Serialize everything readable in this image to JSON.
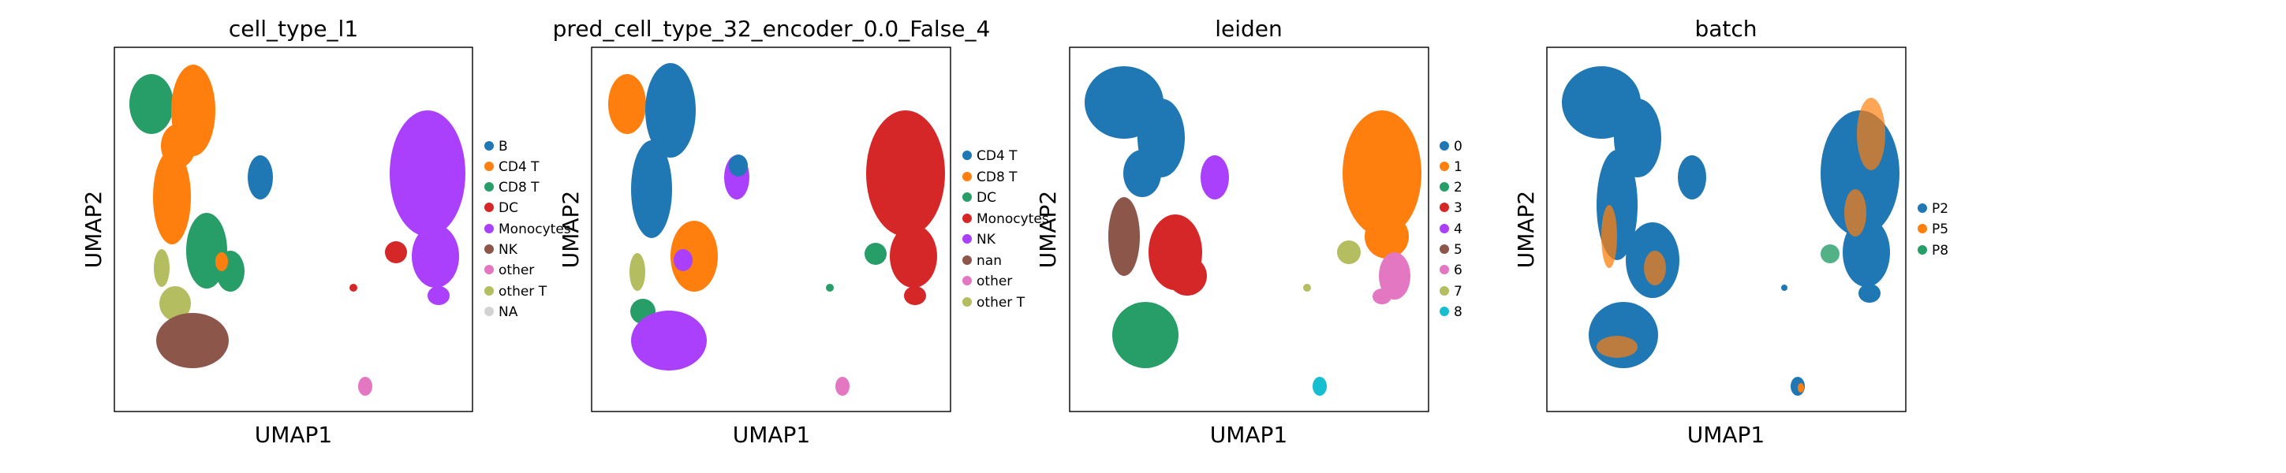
{
  "figure": {
    "panels": [
      {
        "title": "cell_type_l1",
        "xlabel": "UMAP1",
        "ylabel": "UMAP2",
        "legend": [
          "B",
          "CD4 T",
          "CD8 T",
          "DC",
          "Monocytes",
          "NK",
          "other",
          "other T",
          "NA"
        ]
      },
      {
        "title": "pred_cell_type_32_encoder_0.0_False_4",
        "xlabel": "UMAP1",
        "ylabel": "UMAP2",
        "legend": [
          "CD4 T",
          "CD8 T",
          "DC",
          "Monocytes",
          "NK",
          "nan",
          "other",
          "other T"
        ]
      },
      {
        "title": "leiden",
        "xlabel": "UMAP1",
        "ylabel": "UMAP2",
        "legend": [
          "0",
          "1",
          "2",
          "3",
          "4",
          "5",
          "6",
          "7",
          "8"
        ]
      },
      {
        "title": "batch",
        "xlabel": "UMAP1",
        "ylabel": "UMAP2",
        "legend": [
          "P2",
          "P5",
          "P8"
        ]
      }
    ]
  },
  "colors": {
    "blue": "#1f77b4",
    "orange": "#ff7f0e",
    "green": "#279e68",
    "red": "#d62728",
    "purple": "#aa40fc",
    "brown": "#8c564b",
    "pink": "#e377c2",
    "olive": "#b5bd61",
    "cyan": "#17becf",
    "gray": "#d3d3d3"
  },
  "chart_data": [
    {
      "type": "scatter",
      "title": "cell_type_l1",
      "xlabel": "UMAP1",
      "ylabel": "UMAP2",
      "xticks": [],
      "yticks": [],
      "grid": false,
      "legend_position": "right",
      "series": [
        {
          "name": "B",
          "color": "#1f77b4"
        },
        {
          "name": "CD4 T",
          "color": "#ff7f0e"
        },
        {
          "name": "CD8 T",
          "color": "#279e68"
        },
        {
          "name": "DC",
          "color": "#d62728"
        },
        {
          "name": "Monocytes",
          "color": "#aa40fc"
        },
        {
          "name": "NK",
          "color": "#8c564b"
        },
        {
          "name": "other",
          "color": "#e377c2"
        },
        {
          "name": "other T",
          "color": "#b5bd61"
        },
        {
          "name": "NA",
          "color": "#d3d3d3"
        }
      ]
    },
    {
      "type": "scatter",
      "title": "pred_cell_type_32_encoder_0.0_False_4",
      "xlabel": "UMAP1",
      "ylabel": "UMAP2",
      "xticks": [],
      "yticks": [],
      "grid": false,
      "legend_position": "right",
      "series": [
        {
          "name": "CD4 T",
          "color": "#1f77b4"
        },
        {
          "name": "CD8 T",
          "color": "#ff7f0e"
        },
        {
          "name": "DC",
          "color": "#279e68"
        },
        {
          "name": "Monocytes",
          "color": "#d62728"
        },
        {
          "name": "NK",
          "color": "#aa40fc"
        },
        {
          "name": "nan",
          "color": "#8c564b"
        },
        {
          "name": "other",
          "color": "#e377c2"
        },
        {
          "name": "other T",
          "color": "#b5bd61"
        }
      ]
    },
    {
      "type": "scatter",
      "title": "leiden",
      "xlabel": "UMAP1",
      "ylabel": "UMAP2",
      "xticks": [],
      "yticks": [],
      "grid": false,
      "legend_position": "right",
      "series": [
        {
          "name": "0",
          "color": "#1f77b4"
        },
        {
          "name": "1",
          "color": "#ff7f0e"
        },
        {
          "name": "2",
          "color": "#279e68"
        },
        {
          "name": "3",
          "color": "#d62728"
        },
        {
          "name": "4",
          "color": "#aa40fc"
        },
        {
          "name": "5",
          "color": "#8c564b"
        },
        {
          "name": "6",
          "color": "#e377c2"
        },
        {
          "name": "7",
          "color": "#b5bd61"
        },
        {
          "name": "8",
          "color": "#17becf"
        }
      ]
    },
    {
      "type": "scatter",
      "title": "batch",
      "xlabel": "UMAP1",
      "ylabel": "UMAP2",
      "xticks": [],
      "yticks": [],
      "grid": false,
      "legend_position": "right",
      "series": [
        {
          "name": "P2",
          "color": "#1f77b4"
        },
        {
          "name": "P5",
          "color": "#ff7f0e"
        },
        {
          "name": "P8",
          "color": "#279e68"
        }
      ]
    }
  ]
}
